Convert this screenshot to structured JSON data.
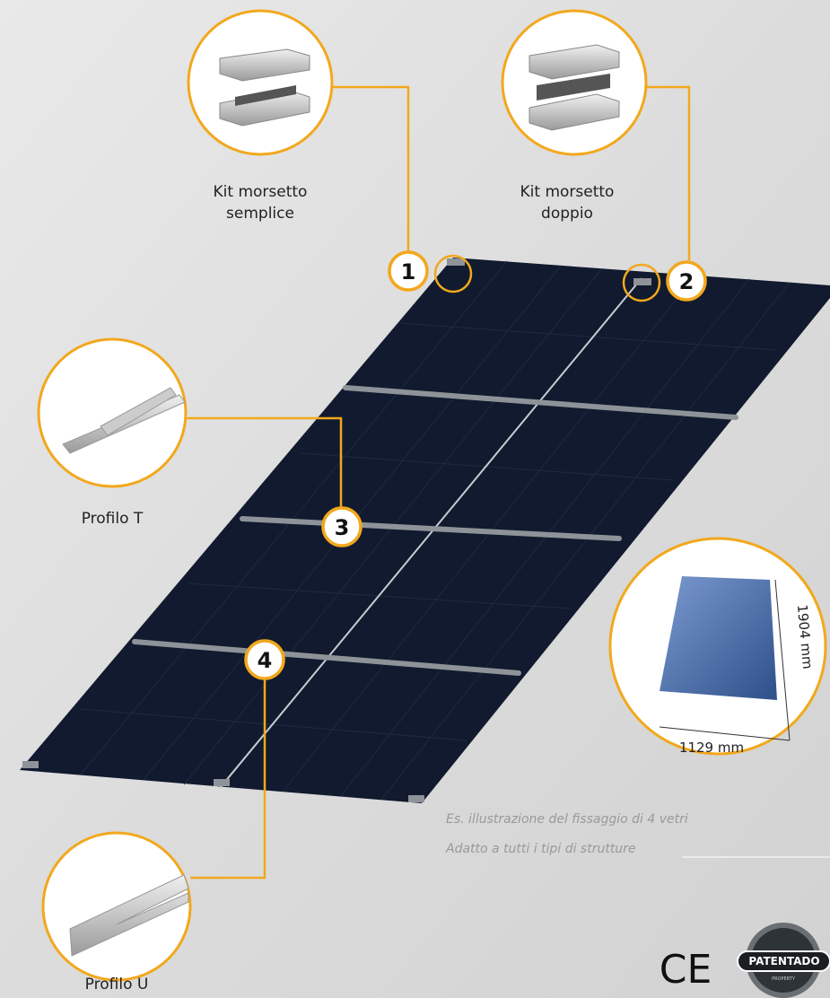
{
  "callouts": [
    {
      "number": "1",
      "label": [
        "Kit morsetto",
        "semplice"
      ]
    },
    {
      "number": "2",
      "label": [
        "Kit morsetto",
        "doppio"
      ]
    },
    {
      "number": "3",
      "label": [
        "Profilo T"
      ]
    },
    {
      "number": "4",
      "label": [
        "Profilo U"
      ]
    }
  ],
  "panel_dimensions": {
    "height": "1904 mm",
    "width": "1129 mm"
  },
  "notes": [
    "Es. illustrazione del fissaggio di 4 vetri",
    "Adatto a tutti i tipi di strutture"
  ],
  "certifications": {
    "ce": "CE",
    "patent": "PATENTADO",
    "patent_sub": "PROPERTY"
  }
}
